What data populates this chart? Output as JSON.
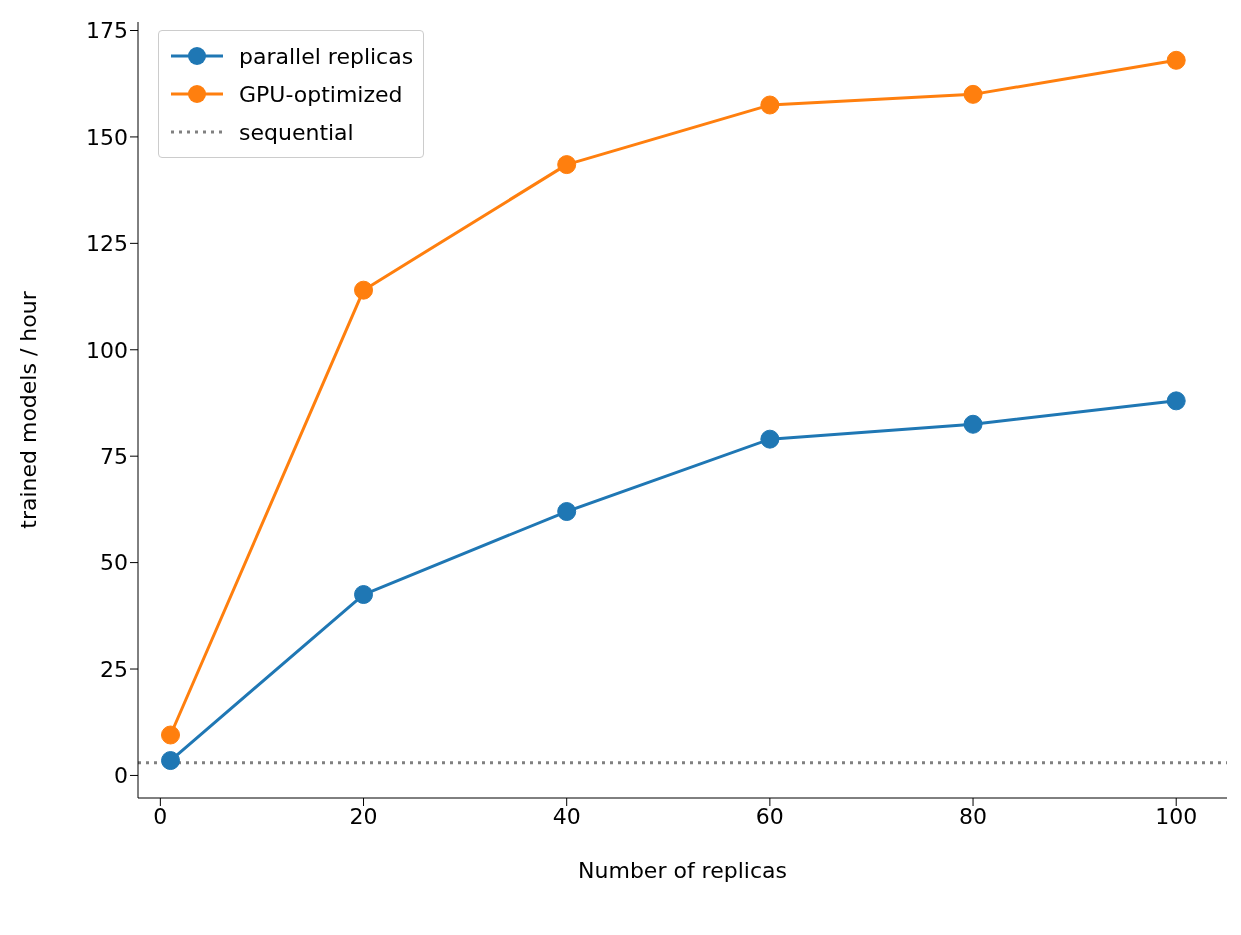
{
  "chart_data": {
    "type": "line",
    "xlabel": "Number of replicas",
    "ylabel": "trained models / hour",
    "x": [
      1,
      20,
      40,
      60,
      80,
      100
    ],
    "series": [
      {
        "name": "parallel replicas",
        "color": "#1f77b4",
        "values": [
          3.5,
          42.5,
          62,
          79,
          82.5,
          88
        ]
      },
      {
        "name": "GPU-optimized",
        "color": "#ff7f0e",
        "values": [
          9.5,
          114,
          143.5,
          157.5,
          160,
          168
        ]
      }
    ],
    "ref_lines": [
      {
        "axis": "y",
        "value": 3,
        "label": "sequential",
        "color": "#808080",
        "line_style": "dotted"
      }
    ],
    "xlim": [
      -2.2,
      105
    ],
    "xticks": [
      0,
      20,
      40,
      60,
      80,
      100
    ],
    "ylim": [
      -5.3,
      177
    ],
    "yticks": [
      0,
      25,
      50,
      75,
      100,
      125,
      150,
      175
    ],
    "grid": false,
    "legend": "top left",
    "marker": "circle",
    "line_style": "solid"
  }
}
